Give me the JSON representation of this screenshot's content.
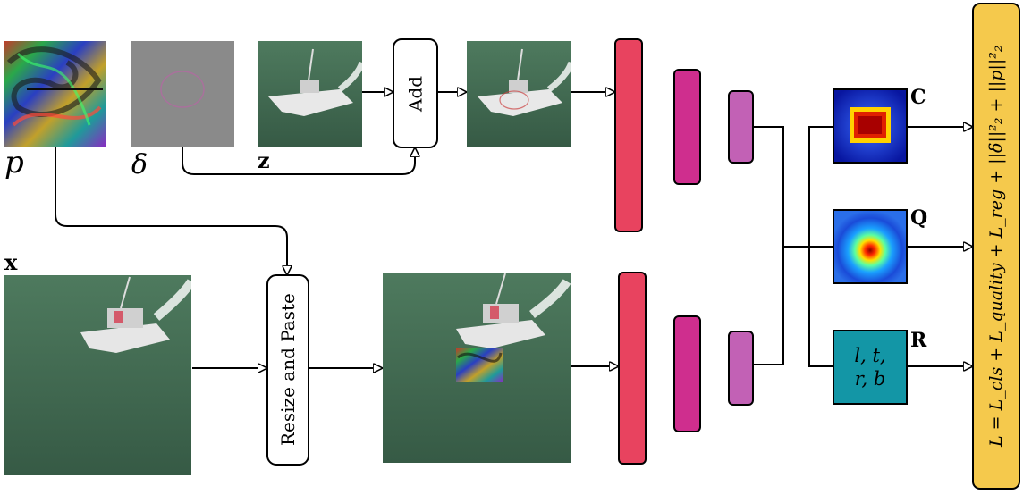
{
  "labels": {
    "p": "p",
    "delta": "δ",
    "z": "z",
    "x": "x",
    "c": "C",
    "q": "Q",
    "r": "R"
  },
  "boxes": {
    "add": "Add",
    "resize_paste": "Resize and Paste",
    "regression": "l, t,\nr, b"
  },
  "loss": "L = L_cls + L_quality + L_reg + ||δ||²₂ + ||p||²₂",
  "colors": {
    "sea": "#3f6650",
    "conv1": "#e8435f",
    "conv2": "#cf2e8e",
    "conv3": "#c261b5",
    "reg_box": "#1396a6",
    "loss_box": "#f5c94c",
    "heat_bg": "#0a1aa0"
  }
}
